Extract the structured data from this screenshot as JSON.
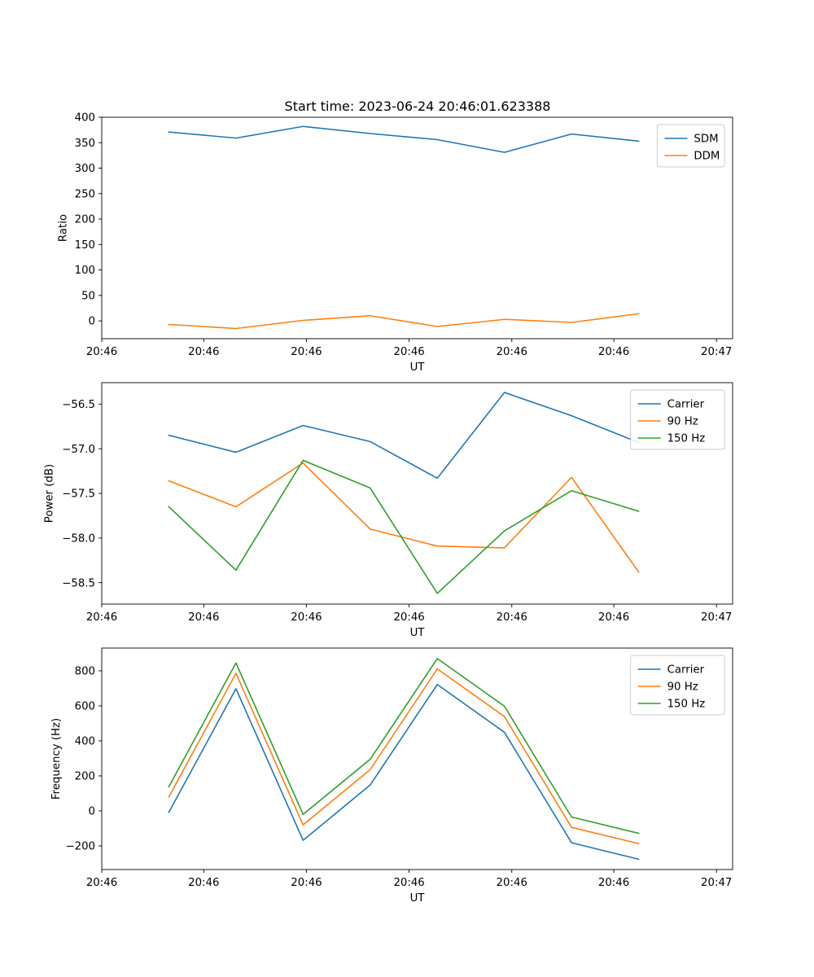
{
  "title": "Start time: 2023-06-24 20:46:01.623388",
  "chart_data": [
    {
      "type": "line",
      "title": "Start time: 2023-06-24 20:46:01.623388",
      "xlabel": "UT",
      "ylabel": "Ratio",
      "x": [
        1,
        2,
        3,
        4,
        5,
        6,
        7,
        8
      ],
      "xlim": [
        0,
        9.4
      ],
      "xticks": [
        0,
        1.52,
        3.05,
        4.58,
        6.11,
        7.63,
        9.16
      ],
      "xtick_labels": [
        "20:46",
        "20:46",
        "20:46",
        "20:46",
        "20:46",
        "20:46",
        "20:47"
      ],
      "ylim": [
        -35,
        400
      ],
      "yticks": [
        0,
        50,
        100,
        150,
        200,
        250,
        300,
        350,
        400
      ],
      "ytick_labels": [
        "0",
        "50",
        "100",
        "150",
        "200",
        "250",
        "300",
        "350",
        "400"
      ],
      "legend_position": "top-right",
      "series": [
        {
          "name": "SDM",
          "color": "#1f77b4",
          "values": [
            371,
            359,
            382,
            368,
            356,
            331,
            367,
            353
          ]
        },
        {
          "name": "DDM",
          "color": "#ff7f0e",
          "values": [
            -7,
            -15,
            1,
            10,
            -11,
            3,
            -3,
            14
          ]
        }
      ]
    },
    {
      "type": "line",
      "xlabel": "UT",
      "ylabel": "Power (dB)",
      "x": [
        1,
        2,
        3,
        4,
        5,
        6,
        7,
        8
      ],
      "xlim": [
        0,
        9.4
      ],
      "xticks": [
        0,
        1.52,
        3.05,
        4.58,
        6.11,
        7.63,
        9.16
      ],
      "xtick_labels": [
        "20:46",
        "20:46",
        "20:46",
        "20:46",
        "20:46",
        "20:46",
        "20:47"
      ],
      "ylim": [
        -58.74,
        -56.26
      ],
      "yticks": [
        -58.5,
        -58.0,
        -57.5,
        -57.0,
        -56.5
      ],
      "ytick_labels": [
        "−58.5",
        "−58.0",
        "−57.5",
        "−57.0",
        "−56.5"
      ],
      "legend_position": "top-right",
      "series": [
        {
          "name": "Carrier",
          "color": "#1f77b4",
          "values": [
            -56.85,
            -57.04,
            -56.74,
            -56.92,
            -57.33,
            -56.37,
            -56.63,
            -56.93
          ]
        },
        {
          "name": "90 Hz",
          "color": "#ff7f0e",
          "values": [
            -57.36,
            -57.65,
            -57.16,
            -57.9,
            -58.09,
            -58.11,
            -57.32,
            -58.38
          ]
        },
        {
          "name": "150 Hz",
          "color": "#2ca02c",
          "values": [
            -57.65,
            -58.36,
            -57.13,
            -57.44,
            -58.62,
            -57.92,
            -57.47,
            -57.7
          ]
        }
      ]
    },
    {
      "type": "line",
      "xlabel": "UT",
      "ylabel": "Frequency (Hz)",
      "x": [
        1,
        2,
        3,
        4,
        5,
        6,
        7,
        8
      ],
      "xlim": [
        0,
        9.4
      ],
      "xticks": [
        0,
        1.52,
        3.05,
        4.58,
        6.11,
        7.63,
        9.16
      ],
      "xtick_labels": [
        "20:46",
        "20:46",
        "20:46",
        "20:46",
        "20:46",
        "20:46",
        "20:47"
      ],
      "ylim": [
        -335,
        930
      ],
      "yticks": [
        -200,
        0,
        200,
        400,
        600,
        800
      ],
      "ytick_labels": [
        "−200",
        "0",
        "200",
        "400",
        "600",
        "800"
      ],
      "legend_position": "top-right",
      "series": [
        {
          "name": "Carrier",
          "color": "#1f77b4",
          "values": [
            -8,
            698,
            -168,
            148,
            722,
            449,
            -182,
            -276
          ]
        },
        {
          "name": "90 Hz",
          "color": "#ff7f0e",
          "values": [
            80,
            786,
            -80,
            236,
            811,
            539,
            -94,
            -187
          ]
        },
        {
          "name": "150 Hz",
          "color": "#2ca02c",
          "values": [
            138,
            845,
            -20,
            295,
            870,
            598,
            -35,
            -128
          ]
        }
      ]
    }
  ]
}
